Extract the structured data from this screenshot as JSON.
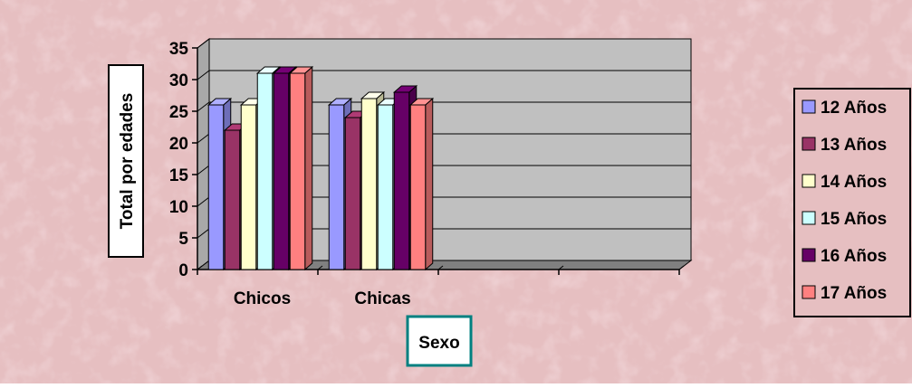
{
  "chart_data": {
    "type": "bar",
    "title": "",
    "xlabel": "Sexo",
    "ylabel": "Total por edades",
    "ylim": [
      0,
      35
    ],
    "yticks": [
      0,
      5,
      10,
      15,
      20,
      25,
      30,
      35
    ],
    "categories": [
      "Chicos",
      "Chicas"
    ],
    "empty_category_slots": 2,
    "grid": true,
    "legend_position": "right",
    "series": [
      {
        "name": "12 Años",
        "values": [
          26,
          26
        ],
        "color": "#9999FF"
      },
      {
        "name": "13 Años",
        "values": [
          22,
          24
        ],
        "color": "#993366"
      },
      {
        "name": "14 Años",
        "values": [
          26,
          27
        ],
        "color": "#FFFFCC"
      },
      {
        "name": "15 Años",
        "values": [
          31,
          26
        ],
        "color": "#CCFFFF"
      },
      {
        "name": "16 Años",
        "values": [
          31,
          28
        ],
        "color": "#660066"
      },
      {
        "name": "17 Años",
        "values": [
          31,
          26
        ],
        "color": "#FF8080"
      }
    ],
    "colors": {
      "background": "#E6BFC1",
      "plot_area": "#C0C0C0",
      "floor": "#808080"
    }
  }
}
